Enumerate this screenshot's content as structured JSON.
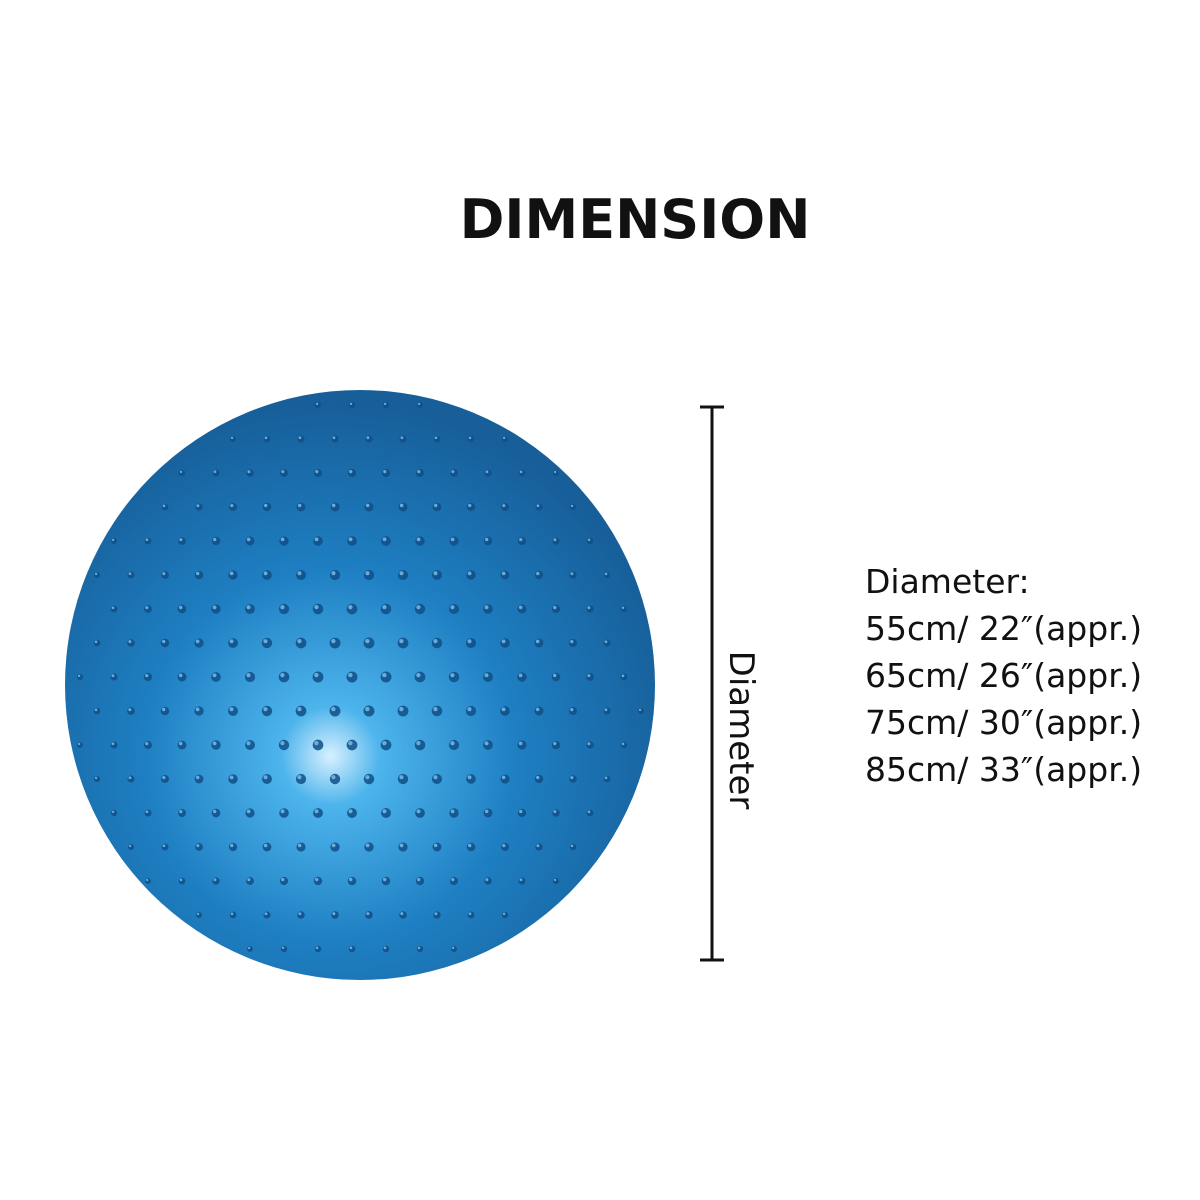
{
  "title": "DIMENSION",
  "measure_label": "Diameter",
  "specs": {
    "heading": "Diameter:",
    "sizes": [
      "55cm/ 22″(appr.)",
      "65cm/ 26″(appr.)",
      "75cm/ 30″(appr.)",
      "85cm/ 33″(appr.)"
    ]
  }
}
